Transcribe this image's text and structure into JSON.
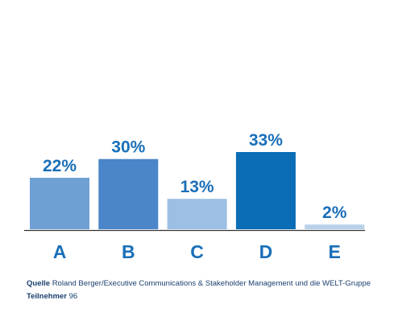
{
  "chart_data": {
    "type": "bar",
    "categories": [
      "A",
      "B",
      "C",
      "D",
      "E"
    ],
    "values": [
      22,
      30,
      13,
      33,
      2
    ],
    "value_labels": [
      "22%",
      "30%",
      "13%",
      "33%",
      "2%"
    ],
    "colors": [
      "#6fa0d4",
      "#4a86c8",
      "#9dbfe3",
      "#0a6db5",
      "#b9d0ea"
    ]
  },
  "footnotes": {
    "source": {
      "label": "Quelle",
      "text": "Roland Berger/Executive Communications & Stakeholder Management und die WELT-Gruppe"
    },
    "participants": {
      "label": "Teilnehmer",
      "text": "96"
    }
  }
}
